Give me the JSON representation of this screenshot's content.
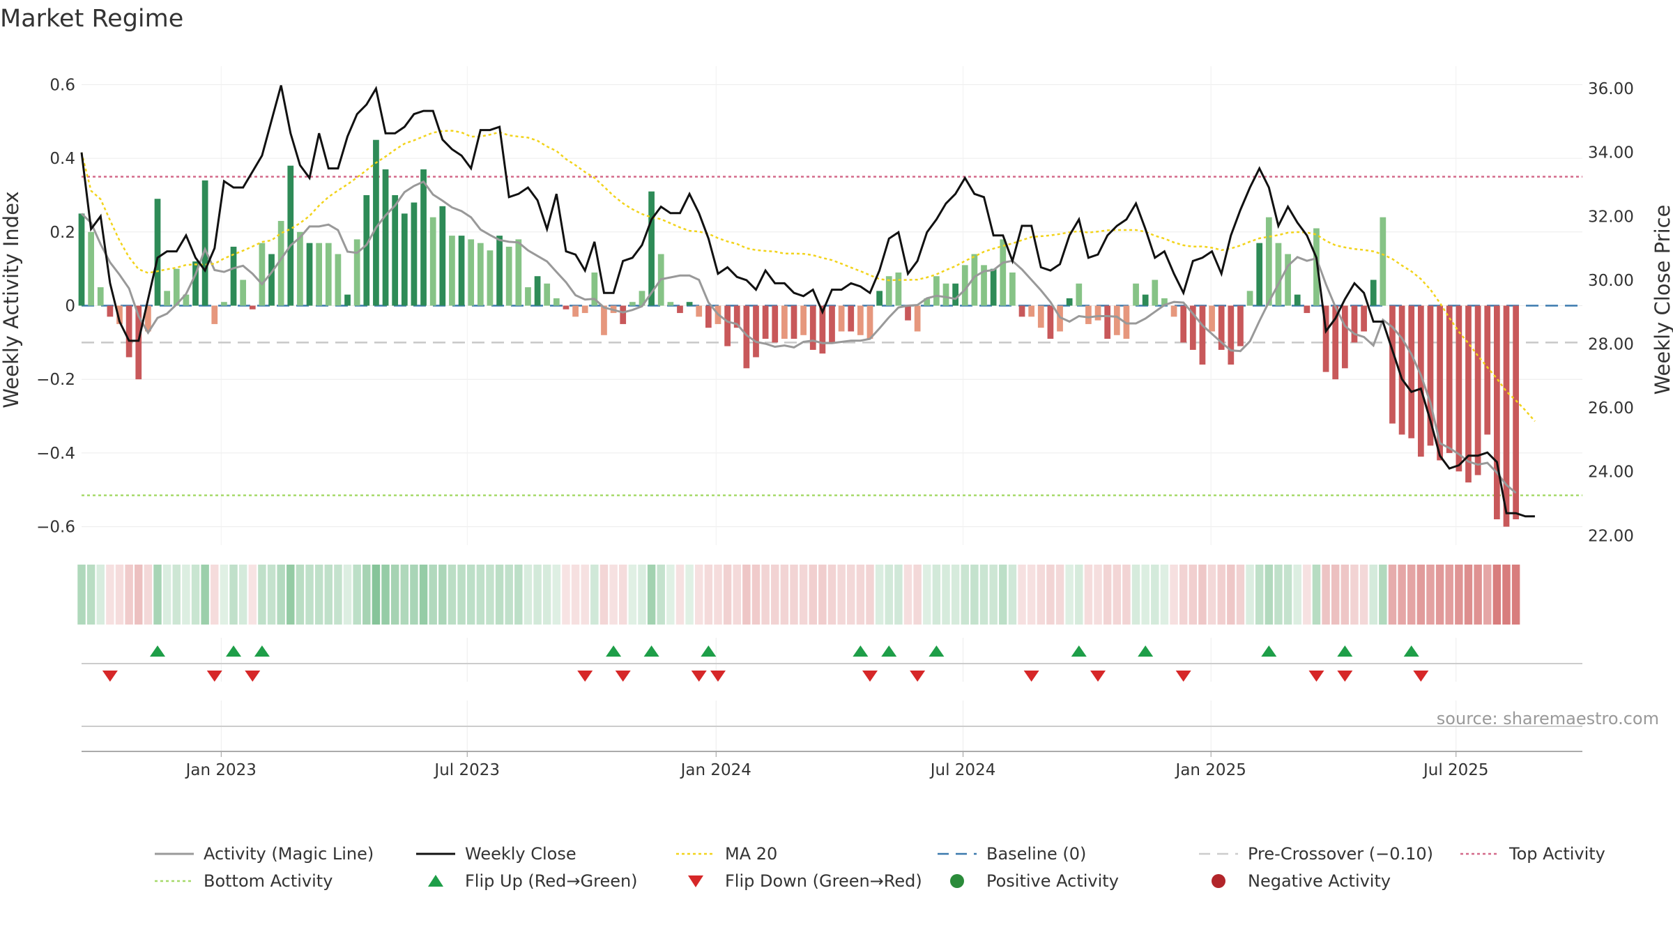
{
  "chart_data": {
    "type": "bar",
    "title": "Market Regime",
    "ylabel_left": "Weekly Activity Index",
    "ylabel_right": "Weekly Close Price",
    "source": "source: sharemaestro.com",
    "x_range": [
      0,
      158
    ],
    "ylim_left": [
      -0.65,
      0.65
    ],
    "ylim_right": [
      21.7,
      36.7
    ],
    "yticks_left": [
      {
        "v": 0.6,
        "label": "0.6"
      },
      {
        "v": 0.4,
        "label": "0.4"
      },
      {
        "v": 0.2,
        "label": "0.2"
      },
      {
        "v": 0,
        "label": "0"
      },
      {
        "v": -0.2,
        "label": "−0.2"
      },
      {
        "v": -0.4,
        "label": "−0.4"
      },
      {
        "v": -0.6,
        "label": "−0.6"
      }
    ],
    "yticks_right": [
      {
        "v": 36,
        "label": "36.00"
      },
      {
        "v": 34,
        "label": "34.00"
      },
      {
        "v": 32,
        "label": "32.00"
      },
      {
        "v": 30,
        "label": "30.00"
      },
      {
        "v": 28,
        "label": "28.00"
      },
      {
        "v": 26,
        "label": "26.00"
      },
      {
        "v": 24,
        "label": "24.00"
      },
      {
        "v": 22,
        "label": "22.00"
      }
    ],
    "xticks": [
      {
        "x": 14.7,
        "label": "Jan 2023"
      },
      {
        "x": 40.6,
        "label": "Jul 2023"
      },
      {
        "x": 66.8,
        "label": "Jan 2024"
      },
      {
        "x": 92.8,
        "label": "Jul 2024"
      },
      {
        "x": 118.9,
        "label": "Jan 2025"
      },
      {
        "x": 144.7,
        "label": "Jul 2025"
      }
    ],
    "reference_lines": {
      "top_activity": 0.35,
      "bottom_activity": -0.515,
      "pre_crossover": -0.1,
      "baseline": 0
    },
    "activity": [
      0.25,
      0.2,
      0.05,
      -0.03,
      -0.05,
      -0.14,
      -0.2,
      -0.07,
      0.29,
      0.04,
      0.1,
      0.03,
      0.12,
      0.34,
      -0.05,
      0.01,
      0.16,
      0.07,
      -0.01,
      0.17,
      0.14,
      0.23,
      0.38,
      0.2,
      0.17,
      0.17,
      0.17,
      0.14,
      0.03,
      0.18,
      0.3,
      0.45,
      0.37,
      0.3,
      0.25,
      0.28,
      0.37,
      0.24,
      0.27,
      0.19,
      0.19,
      0.18,
      0.17,
      0.15,
      0.19,
      0.16,
      0.18,
      0.05,
      0.08,
      0.06,
      0.02,
      -0.01,
      -0.03,
      -0.02,
      0.09,
      -0.08,
      -0.02,
      -0.05,
      0.01,
      0.04,
      0.31,
      0.14,
      0.01,
      -0.02,
      0.01,
      -0.03,
      -0.06,
      -0.05,
      -0.11,
      -0.06,
      -0.17,
      -0.14,
      -0.09,
      -0.1,
      -0.09,
      -0.09,
      -0.08,
      -0.12,
      -0.13,
      -0.1,
      -0.07,
      -0.07,
      -0.08,
      -0.09,
      0.04,
      0.08,
      0.09,
      -0.04,
      -0.07,
      0.02,
      0.08,
      0.06,
      0.06,
      0.11,
      0.14,
      0.11,
      0.1,
      0.18,
      0.09,
      -0.03,
      -0.03,
      -0.06,
      -0.09,
      -0.07,
      0.02,
      0.06,
      -0.05,
      -0.04,
      -0.09,
      -0.08,
      -0.09,
      0.06,
      0.03,
      0.07,
      0.02,
      -0.03,
      -0.1,
      -0.12,
      -0.16,
      -0.07,
      -0.12,
      -0.16,
      -0.11,
      0.04,
      0.17,
      0.24,
      0.17,
      0.14,
      0.03,
      -0.02,
      0.21,
      -0.18,
      -0.2,
      -0.17,
      -0.1,
      -0.07,
      0.07,
      0.24,
      -0.32,
      -0.35,
      -0.36,
      -0.41,
      -0.38,
      -0.42,
      -0.4,
      -0.45,
      -0.48,
      -0.46,
      -0.35,
      -0.58,
      -0.6,
      -0.58
    ],
    "close": [
      34,
      31.6,
      32,
      29.9,
      28.7,
      28.1,
      28.1,
      29.4,
      30.7,
      30.9,
      30.9,
      31.4,
      30.7,
      30.3,
      31,
      33.1,
      32.9,
      32.9,
      33.4,
      33.9,
      35,
      36.1,
      34.6,
      33.6,
      33.2,
      34.6,
      33.5,
      33.5,
      34.5,
      35.2,
      35.5,
      36,
      34.6,
      34.6,
      34.8,
      35.2,
      35.3,
      35.3,
      34.4,
      34.1,
      33.9,
      33.5,
      34.7,
      34.7,
      34.8,
      32.6,
      32.7,
      32.9,
      32.5,
      31.6,
      32.7,
      30.9,
      30.8,
      30.3,
      31.2,
      29.6,
      29.6,
      30.6,
      30.7,
      31.1,
      31.9,
      32.3,
      32.1,
      32.1,
      32.7,
      32.1,
      31.3,
      30.2,
      30.4,
      30.1,
      30,
      29.7,
      30.3,
      29.9,
      29.9,
      29.6,
      29.5,
      29.7,
      29,
      29.7,
      29.7,
      29.9,
      29.8,
      29.6,
      30.3,
      31.3,
      31.5,
      30.2,
      30.6,
      31.5,
      31.9,
      32.4,
      32.7,
      33.2,
      32.7,
      32.6,
      31.4,
      31.4,
      30.6,
      31.7,
      31.7,
      30.4,
      30.3,
      30.5,
      31.4,
      31.9,
      30.7,
      30.8,
      31.4,
      31.7,
      31.9,
      32.4,
      31.6,
      30.7,
      30.9,
      30.2,
      29.6,
      30.6,
      30.7,
      30.9,
      30.2,
      31.4,
      32.2,
      32.9,
      33.5,
      32.9,
      31.7,
      32.3,
      31.8,
      31.4,
      30.7,
      28.4,
      28.8,
      29.4,
      29.9,
      29.6,
      28.7,
      28.7,
      27.8,
      26.9,
      26.5,
      26.6,
      25.6,
      24.5,
      24.1,
      24.2,
      24.5,
      24.5,
      24.6,
      24.3,
      22.7,
      22.7,
      22.6,
      22.6
    ],
    "flip_up_index": [
      8,
      16,
      19,
      56,
      60,
      66,
      82,
      85,
      90,
      105,
      112,
      125,
      133,
      140
    ],
    "flip_down_index": [
      3,
      14,
      18,
      53,
      57,
      65,
      67,
      83,
      88,
      100,
      107,
      116,
      130,
      133,
      141
    ],
    "legend": [
      {
        "label": "Activity (Magic Line)",
        "kind": "line",
        "color": "#999999"
      },
      {
        "label": "Weekly Close",
        "kind": "line",
        "color": "#111111"
      },
      {
        "label": "MA 20",
        "kind": "dotted",
        "color": "#f2d31b"
      },
      {
        "label": "Baseline (0)",
        "kind": "dashed",
        "color": "#3a79ad"
      },
      {
        "label": "Pre-Crossover (−0.10)",
        "kind": "dashed",
        "color": "#cccccc"
      },
      {
        "label": "Top Activity",
        "kind": "dotted",
        "color": "#d46a8a"
      },
      {
        "label": "Bottom Activity",
        "kind": "dotted",
        "color": "#a6d96a"
      },
      {
        "label": "Flip Up (Red→Green)",
        "kind": "tri-up",
        "color": "#1e9e48"
      },
      {
        "label": "Flip Down (Green→Red)",
        "kind": "tri-down",
        "color": "#d62728"
      },
      {
        "label": "Positive Activity",
        "kind": "dot",
        "color": "#2a8b3a"
      },
      {
        "label": "Negative Activity",
        "kind": "dot",
        "color": "#b2252a"
      }
    ],
    "colors": {
      "pos_strong": "#2e8b57",
      "pos_light": "#86c386",
      "neg_strong": "#c8585a",
      "neg_light": "#e6977d",
      "close": "#111111",
      "magic": "#999999",
      "ma": "#f2d31b"
    }
  }
}
